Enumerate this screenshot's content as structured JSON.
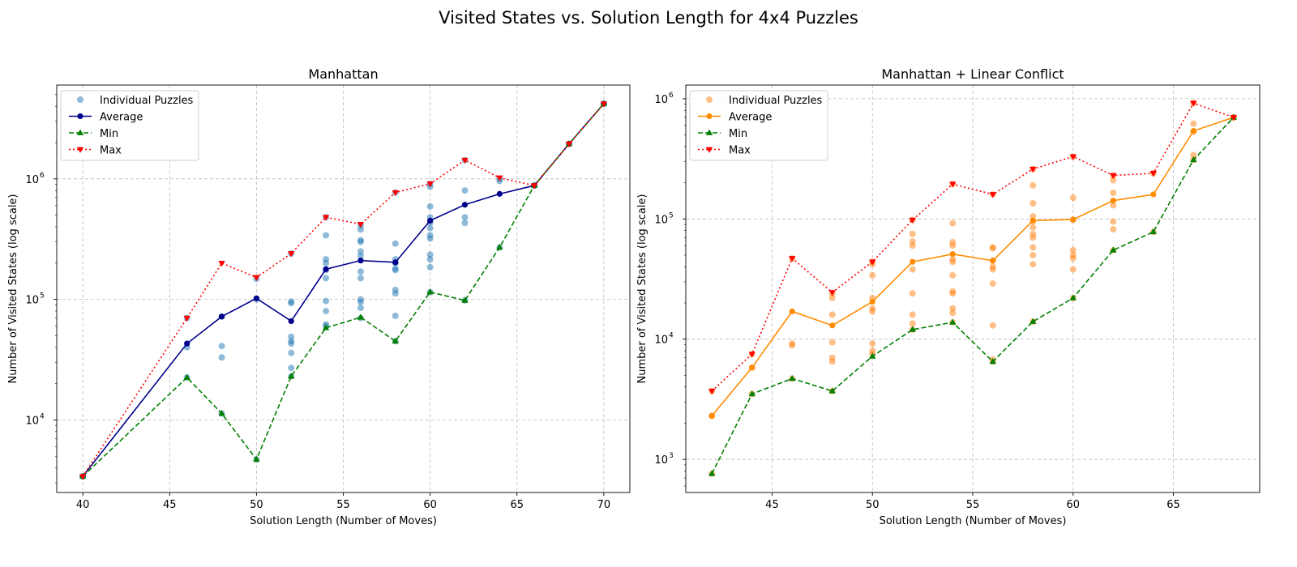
{
  "figure": {
    "title": "Visited States vs. Solution Length for 4x4 Puzzles"
  },
  "colors": {
    "individual_manhattan": "#1f77b4",
    "average_manhattan": "#00008b",
    "individual_linear": "#ff7f0e",
    "average_linear": "#ff8c00",
    "min": "#008000",
    "max": "#ff0000",
    "grid": "#b0b0b0"
  },
  "chart_data": [
    {
      "type": "scatter",
      "title": "Manhattan",
      "xlabel": "Solution Length (Number of Moves)",
      "ylabel": "Number of Visited States (log scale)",
      "yscale": "log",
      "xlim": [
        38.5,
        71.5
      ],
      "ylim": [
        2500,
        6000000
      ],
      "xticks": [
        40,
        45,
        50,
        55,
        60,
        65,
        70
      ],
      "yticks": [
        {
          "base": "10",
          "exp": "4",
          "value": 10000
        },
        {
          "base": "10",
          "exp": "5",
          "value": 100000
        },
        {
          "base": "10",
          "exp": "6",
          "value": 1000000
        }
      ],
      "grid": true,
      "legend_position": "upper left",
      "legend": [
        "Individual Puzzles",
        "Average",
        "Min",
        "Max"
      ],
      "scatter": [
        [
          40,
          3400
        ],
        [
          46,
          70000
        ],
        [
          46,
          40000
        ],
        [
          46,
          22500
        ],
        [
          48,
          72000
        ],
        [
          48,
          41000
        ],
        [
          48,
          33000
        ],
        [
          48,
          11300
        ],
        [
          50,
          100000
        ],
        [
          50,
          148000
        ],
        [
          50,
          4700
        ],
        [
          52,
          96000
        ],
        [
          52,
          93000
        ],
        [
          52,
          49000
        ],
        [
          52,
          45000
        ],
        [
          52,
          43000
        ],
        [
          52,
          36000
        ],
        [
          52,
          27000
        ],
        [
          52,
          23000
        ],
        [
          52,
          240000
        ],
        [
          54,
          480000
        ],
        [
          54,
          340000
        ],
        [
          54,
          215000
        ],
        [
          54,
          200000
        ],
        [
          54,
          175000
        ],
        [
          54,
          150000
        ],
        [
          54,
          97000
        ],
        [
          54,
          80000
        ],
        [
          54,
          62000
        ],
        [
          54,
          60000
        ],
        [
          56,
          410000
        ],
        [
          56,
          380000
        ],
        [
          56,
          310000
        ],
        [
          56,
          300000
        ],
        [
          56,
          250000
        ],
        [
          56,
          230000
        ],
        [
          56,
          170000
        ],
        [
          56,
          150000
        ],
        [
          56,
          100000
        ],
        [
          56,
          95000
        ],
        [
          56,
          85000
        ],
        [
          56,
          70000
        ],
        [
          58,
          770000
        ],
        [
          58,
          290000
        ],
        [
          58,
          215000
        ],
        [
          58,
          200000
        ],
        [
          58,
          180000
        ],
        [
          58,
          175000
        ],
        [
          58,
          120000
        ],
        [
          58,
          112000
        ],
        [
          58,
          73000
        ],
        [
          58,
          45000
        ],
        [
          60,
          910000
        ],
        [
          60,
          860000
        ],
        [
          60,
          590000
        ],
        [
          60,
          480000
        ],
        [
          60,
          430000
        ],
        [
          60,
          390000
        ],
        [
          60,
          340000
        ],
        [
          60,
          320000
        ],
        [
          60,
          235000
        ],
        [
          60,
          215000
        ],
        [
          60,
          185000
        ],
        [
          60,
          115000
        ],
        [
          62,
          1430000
        ],
        [
          62,
          800000
        ],
        [
          62,
          480000
        ],
        [
          62,
          430000
        ],
        [
          62,
          98000
        ],
        [
          64,
          1000000
        ],
        [
          64,
          960000
        ],
        [
          64,
          270000
        ],
        [
          66,
          880000
        ],
        [
          68,
          1950000
        ],
        [
          70,
          4200000
        ]
      ],
      "series": [
        {
          "name": "Average",
          "style": "solid-circle",
          "x": [
            40,
            46,
            48,
            50,
            52,
            54,
            56,
            58,
            60,
            62,
            64,
            66,
            68,
            70
          ],
          "values": [
            3400,
            43000,
            72000,
            102000,
            66000,
            178000,
            210000,
            203000,
            450000,
            610000,
            750000,
            880000,
            1950000,
            4200000
          ]
        },
        {
          "name": "Min",
          "style": "dashed-triangle-up",
          "x": [
            40,
            46,
            48,
            50,
            52,
            54,
            56,
            58,
            60,
            62,
            64,
            66,
            68,
            70
          ],
          "values": [
            3400,
            22500,
            11300,
            4700,
            23000,
            58000,
            71000,
            45000,
            115000,
            98000,
            270000,
            880000,
            1950000,
            4200000
          ]
        },
        {
          "name": "Max",
          "style": "dotted-triangle-down",
          "x": [
            40,
            46,
            48,
            50,
            52,
            54,
            56,
            58,
            60,
            62,
            64,
            66,
            68,
            70
          ],
          "values": [
            3400,
            70000,
            200000,
            152000,
            240000,
            480000,
            420000,
            770000,
            910000,
            1430000,
            1020000,
            880000,
            1950000,
            4200000
          ]
        }
      ]
    },
    {
      "type": "scatter",
      "title": "Manhattan + Linear Conflict",
      "xlabel": "Solution Length (Number of Moves)",
      "ylabel": "Number of Visited States (log scale)",
      "yscale": "log",
      "xlim": [
        40.7,
        69.3
      ],
      "ylim": [
        530,
        1300000
      ],
      "xticks": [
        45,
        50,
        55,
        60,
        65
      ],
      "yticks": [
        {
          "base": "10",
          "exp": "3",
          "value": 1000
        },
        {
          "base": "10",
          "exp": "4",
          "value": 10000
        },
        {
          "base": "10",
          "exp": "5",
          "value": 100000
        },
        {
          "base": "10",
          "exp": "6",
          "value": 1000000
        }
      ],
      "grid": true,
      "legend_position": "upper left",
      "legend": [
        "Individual Puzzles",
        "Average",
        "Min",
        "Max"
      ],
      "scatter": [
        [
          42,
          2300
        ],
        [
          42,
          3700
        ],
        [
          42,
          760
        ],
        [
          44,
          7500
        ],
        [
          44,
          5800
        ],
        [
          44,
          3500
        ],
        [
          46,
          47000
        ],
        [
          46,
          9200
        ],
        [
          46,
          8900
        ],
        [
          46,
          4700
        ],
        [
          48,
          24000
        ],
        [
          48,
          22000
        ],
        [
          48,
          16000
        ],
        [
          48,
          9400
        ],
        [
          48,
          7000
        ],
        [
          48,
          6500
        ],
        [
          48,
          3700
        ],
        [
          50,
          44000
        ],
        [
          50,
          42000
        ],
        [
          50,
          34000
        ],
        [
          50,
          22000
        ],
        [
          50,
          18000
        ],
        [
          50,
          17000
        ],
        [
          50,
          9200
        ],
        [
          50,
          8000
        ],
        [
          50,
          7500
        ],
        [
          52,
          98000
        ],
        [
          52,
          75000
        ],
        [
          52,
          65000
        ],
        [
          52,
          60000
        ],
        [
          52,
          38000
        ],
        [
          52,
          24000
        ],
        [
          52,
          16000
        ],
        [
          52,
          13500
        ],
        [
          52,
          12000
        ],
        [
          54,
          195000
        ],
        [
          54,
          92000
        ],
        [
          54,
          64000
        ],
        [
          54,
          60000
        ],
        [
          54,
          46000
        ],
        [
          54,
          44000
        ],
        [
          54,
          34000
        ],
        [
          54,
          25000
        ],
        [
          54,
          24000
        ],
        [
          54,
          18000
        ],
        [
          54,
          16500
        ],
        [
          54,
          13800
        ],
        [
          56,
          160000
        ],
        [
          56,
          58000
        ],
        [
          56,
          57000
        ],
        [
          56,
          45000
        ],
        [
          56,
          40000
        ],
        [
          56,
          38000
        ],
        [
          56,
          29000
        ],
        [
          56,
          13000
        ],
        [
          56,
          6800
        ],
        [
          56,
          6500
        ],
        [
          58,
          260000
        ],
        [
          58,
          190000
        ],
        [
          58,
          135000
        ],
        [
          58,
          105000
        ],
        [
          58,
          95000
        ],
        [
          58,
          85000
        ],
        [
          58,
          75000
        ],
        [
          58,
          70000
        ],
        [
          58,
          58000
        ],
        [
          58,
          50000
        ],
        [
          58,
          42000
        ],
        [
          58,
          14000
        ],
        [
          60,
          330000
        ],
        [
          60,
          150000
        ],
        [
          60,
          98000
        ],
        [
          60,
          55000
        ],
        [
          60,
          50000
        ],
        [
          60,
          47000
        ],
        [
          60,
          38000
        ],
        [
          60,
          22000
        ],
        [
          62,
          230000
        ],
        [
          62,
          210000
        ],
        [
          62,
          165000
        ],
        [
          62,
          130000
        ],
        [
          62,
          95000
        ],
        [
          62,
          82000
        ],
        [
          62,
          55000
        ],
        [
          64,
          240000
        ],
        [
          64,
          78000
        ],
        [
          66,
          920000
        ],
        [
          66,
          620000
        ],
        [
          66,
          530000
        ],
        [
          66,
          340000
        ],
        [
          66,
          310000
        ],
        [
          68,
          700000
        ]
      ],
      "series": [
        {
          "name": "Average",
          "style": "solid-circle",
          "x": [
            42,
            44,
            46,
            48,
            50,
            52,
            54,
            56,
            58,
            60,
            62,
            64,
            66,
            68
          ],
          "values": [
            2300,
            5800,
            17000,
            13000,
            20500,
            44000,
            51000,
            45000,
            97000,
            99000,
            142000,
            160000,
            540000,
            700000
          ]
        },
        {
          "name": "Min",
          "style": "dashed-triangle-up",
          "x": [
            42,
            44,
            46,
            48,
            50,
            52,
            54,
            56,
            58,
            60,
            62,
            64,
            66,
            68
          ],
          "values": [
            760,
            3500,
            4700,
            3700,
            7200,
            12000,
            13800,
            6500,
            14000,
            22000,
            55000,
            78000,
            310000,
            700000
          ]
        },
        {
          "name": "Max",
          "style": "dotted-triangle-down",
          "x": [
            42,
            44,
            46,
            48,
            50,
            52,
            54,
            56,
            58,
            60,
            62,
            64,
            66,
            68
          ],
          "values": [
            3700,
            7500,
            47000,
            24500,
            44000,
            98000,
            195000,
            160000,
            260000,
            330000,
            230000,
            240000,
            920000,
            700000
          ]
        }
      ]
    }
  ]
}
